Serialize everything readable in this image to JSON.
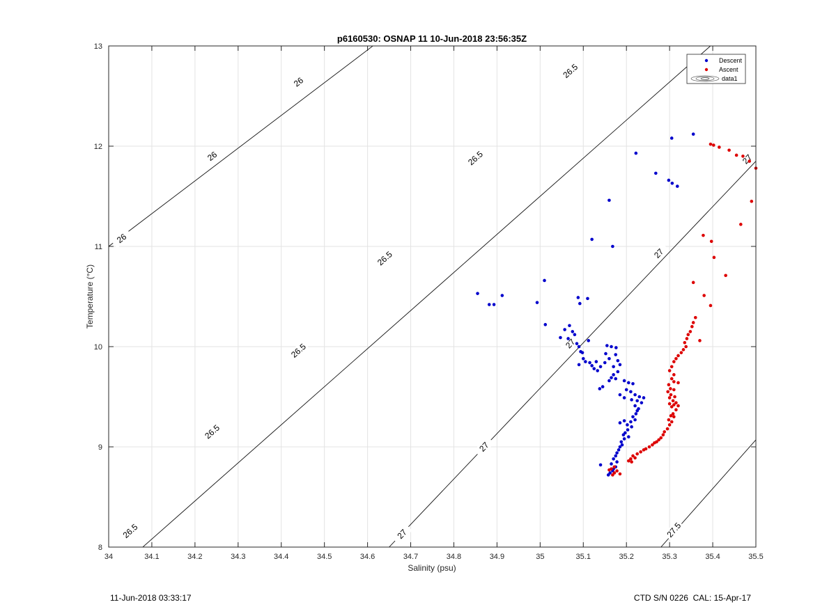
{
  "chart_data": {
    "type": "scatter",
    "title": "p6160530: OSNAP 11 10-Jun-2018 23:56:35Z",
    "xlabel": "Salinity (psu)",
    "ylabel": "Temperature (°C)",
    "xlim": [
      34,
      35.5
    ],
    "ylim": [
      8,
      13
    ],
    "xticks": [
      "34",
      "34.1",
      "34.2",
      "34.3",
      "34.4",
      "34.5",
      "34.6",
      "34.7",
      "34.8",
      "34.9",
      "35",
      "35.1",
      "35.2",
      "35.3",
      "35.4",
      "35.5"
    ],
    "yticks": [
      "8",
      "9",
      "10",
      "11",
      "12",
      "13"
    ],
    "grid": true,
    "legend_position": "top-right",
    "legend": [
      "Descent",
      "Ascent",
      "data1"
    ],
    "series": [
      {
        "name": "Descent",
        "color": "#0000cc",
        "points": [
          [
            35.355,
            12.12
          ],
          [
            35.305,
            12.08
          ],
          [
            35.222,
            11.93
          ],
          [
            35.268,
            11.73
          ],
          [
            35.298,
            11.66
          ],
          [
            35.306,
            11.63
          ],
          [
            35.318,
            11.6
          ],
          [
            35.16,
            11.46
          ],
          [
            35.12,
            11.07
          ],
          [
            35.168,
            11.0
          ],
          [
            35.01,
            10.66
          ],
          [
            34.855,
            10.53
          ],
          [
            34.912,
            10.51
          ],
          [
            34.882,
            10.42
          ],
          [
            34.893,
            10.42
          ],
          [
            34.993,
            10.44
          ],
          [
            35.088,
            10.49
          ],
          [
            35.11,
            10.48
          ],
          [
            35.092,
            10.43
          ],
          [
            35.012,
            10.22
          ],
          [
            35.068,
            10.21
          ],
          [
            35.057,
            10.17
          ],
          [
            35.075,
            10.15
          ],
          [
            35.08,
            10.12
          ],
          [
            35.047,
            10.09
          ],
          [
            35.065,
            10.08
          ],
          [
            35.112,
            10.06
          ],
          [
            35.085,
            10.03
          ],
          [
            35.09,
            10.0
          ],
          [
            35.094,
            9.95
          ],
          [
            35.155,
            10.01
          ],
          [
            35.165,
            10.0
          ],
          [
            35.176,
            9.99
          ],
          [
            35.098,
            9.94
          ],
          [
            35.152,
            9.93
          ],
          [
            35.175,
            9.92
          ],
          [
            35.1,
            9.88
          ],
          [
            35.16,
            9.88
          ],
          [
            35.18,
            9.86
          ],
          [
            35.105,
            9.85
          ],
          [
            35.115,
            9.84
          ],
          [
            35.13,
            9.85
          ],
          [
            35.15,
            9.84
          ],
          [
            35.09,
            9.82
          ],
          [
            35.12,
            9.81
          ],
          [
            35.14,
            9.8
          ],
          [
            35.17,
            9.8
          ],
          [
            35.185,
            9.82
          ],
          [
            35.125,
            9.78
          ],
          [
            35.133,
            9.76
          ],
          [
            35.18,
            9.75
          ],
          [
            35.17,
            9.72
          ],
          [
            35.165,
            9.69
          ],
          [
            35.16,
            9.66
          ],
          [
            35.175,
            9.68
          ],
          [
            35.195,
            9.66
          ],
          [
            35.205,
            9.64
          ],
          [
            35.215,
            9.63
          ],
          [
            35.145,
            9.6
          ],
          [
            35.138,
            9.58
          ],
          [
            35.2,
            9.57
          ],
          [
            35.21,
            9.55
          ],
          [
            35.185,
            9.52
          ],
          [
            35.22,
            9.52
          ],
          [
            35.23,
            9.5
          ],
          [
            35.24,
            9.49
          ],
          [
            35.195,
            9.49
          ],
          [
            35.212,
            9.47
          ],
          [
            35.225,
            9.46
          ],
          [
            35.235,
            9.44
          ],
          [
            35.22,
            9.41
          ],
          [
            35.228,
            9.38
          ],
          [
            35.225,
            9.36
          ],
          [
            35.222,
            9.33
          ],
          [
            35.215,
            9.3
          ],
          [
            35.22,
            9.27
          ],
          [
            35.21,
            9.25
          ],
          [
            35.195,
            9.26
          ],
          [
            35.185,
            9.24
          ],
          [
            35.202,
            9.22
          ],
          [
            35.212,
            9.2
          ],
          [
            35.203,
            9.17
          ],
          [
            35.197,
            9.14
          ],
          [
            35.193,
            9.12
          ],
          [
            35.205,
            9.1
          ],
          [
            35.195,
            9.08
          ],
          [
            35.188,
            9.05
          ],
          [
            35.19,
            9.02
          ],
          [
            35.185,
            9.0
          ],
          [
            35.182,
            8.97
          ],
          [
            35.178,
            8.94
          ],
          [
            35.175,
            8.91
          ],
          [
            35.17,
            8.88
          ],
          [
            35.178,
            8.85
          ],
          [
            35.165,
            8.83
          ],
          [
            35.14,
            8.82
          ],
          [
            35.175,
            8.8
          ],
          [
            35.17,
            8.78
          ],
          [
            35.168,
            8.76
          ],
          [
            35.162,
            8.74
          ],
          [
            35.158,
            8.72
          ]
        ]
      },
      {
        "name": "Ascent",
        "color": "#dd0000",
        "points": [
          [
            35.395,
            12.02
          ],
          [
            35.402,
            12.01
          ],
          [
            35.415,
            11.99
          ],
          [
            35.438,
            11.96
          ],
          [
            35.455,
            11.91
          ],
          [
            35.47,
            11.9
          ],
          [
            35.485,
            11.85
          ],
          [
            35.5,
            11.78
          ],
          [
            35.49,
            11.45
          ],
          [
            35.465,
            11.22
          ],
          [
            35.378,
            11.11
          ],
          [
            35.397,
            11.05
          ],
          [
            35.403,
            10.89
          ],
          [
            35.43,
            10.71
          ],
          [
            35.355,
            10.64
          ],
          [
            35.38,
            10.51
          ],
          [
            35.395,
            10.41
          ],
          [
            35.36,
            10.29
          ],
          [
            35.355,
            10.24
          ],
          [
            35.352,
            10.2
          ],
          [
            35.348,
            10.15
          ],
          [
            35.343,
            10.12
          ],
          [
            35.34,
            10.08
          ],
          [
            35.37,
            10.06
          ],
          [
            35.335,
            10.04
          ],
          [
            35.338,
            10.0
          ],
          [
            35.332,
            9.97
          ],
          [
            35.327,
            9.94
          ],
          [
            35.32,
            9.91
          ],
          [
            35.315,
            9.88
          ],
          [
            35.31,
            9.85
          ],
          [
            35.305,
            9.8
          ],
          [
            35.3,
            9.76
          ],
          [
            35.31,
            9.72
          ],
          [
            35.305,
            9.68
          ],
          [
            35.31,
            9.65
          ],
          [
            35.32,
            9.64
          ],
          [
            35.298,
            9.62
          ],
          [
            35.302,
            9.58
          ],
          [
            35.31,
            9.57
          ],
          [
            35.296,
            9.55
          ],
          [
            35.303,
            9.52
          ],
          [
            35.312,
            9.5
          ],
          [
            35.3,
            9.49
          ],
          [
            35.308,
            9.46
          ],
          [
            35.315,
            9.44
          ],
          [
            35.3,
            9.43
          ],
          [
            35.31,
            9.42
          ],
          [
            35.32,
            9.41
          ],
          [
            35.305,
            9.4
          ],
          [
            35.315,
            9.37
          ],
          [
            35.308,
            9.33
          ],
          [
            35.303,
            9.31
          ],
          [
            35.31,
            9.3
          ],
          [
            35.298,
            9.27
          ],
          [
            35.305,
            9.25
          ],
          [
            35.3,
            9.22
          ],
          [
            35.295,
            9.18
          ],
          [
            35.288,
            9.15
          ],
          [
            35.285,
            9.12
          ],
          [
            35.28,
            9.09
          ],
          [
            35.275,
            9.07
          ],
          [
            35.27,
            9.05
          ],
          [
            35.265,
            9.04
          ],
          [
            35.26,
            9.02
          ],
          [
            35.253,
            9.0
          ],
          [
            35.245,
            8.98
          ],
          [
            35.24,
            8.97
          ],
          [
            35.233,
            8.95
          ],
          [
            35.225,
            8.93
          ],
          [
            35.215,
            8.91
          ],
          [
            35.22,
            8.89
          ],
          [
            35.21,
            8.88
          ],
          [
            35.205,
            8.86
          ],
          [
            35.212,
            8.85
          ],
          [
            35.172,
            8.8
          ],
          [
            35.165,
            8.78
          ],
          [
            35.16,
            8.77
          ],
          [
            35.178,
            8.76
          ],
          [
            35.172,
            8.74
          ],
          [
            35.185,
            8.73
          ],
          [
            35.168,
            8.72
          ]
        ]
      }
    ],
    "contours": [
      {
        "label": "26",
        "line": [
          [
            34,
            11.0
          ],
          [
            35.5,
            15.9
          ]
        ],
        "label_positions": [
          [
            34.03,
            11.08
          ],
          [
            34.24,
            11.9
          ],
          [
            34.44,
            12.64
          ]
        ]
      },
      {
        "label": "26.5",
        "line": [
          [
            34,
            7.7
          ],
          [
            35.5,
            13.4
          ]
        ],
        "label_positions": [
          [
            34.05,
            8.16
          ],
          [
            34.24,
            9.15
          ],
          [
            34.44,
            9.96
          ],
          [
            34.64,
            10.88
          ],
          [
            34.85,
            11.88
          ],
          [
            35.07,
            12.75
          ]
        ]
      },
      {
        "label": "27",
        "line": [
          [
            34.65,
            8.0
          ],
          [
            35.5,
            11.85
          ]
        ],
        "label_positions": [
          [
            34.68,
            8.13
          ],
          [
            34.87,
            9.0
          ],
          [
            35.07,
            10.03
          ],
          [
            35.275,
            10.93
          ],
          [
            35.48,
            11.87
          ]
        ]
      },
      {
        "label": "27.5",
        "line": [
          [
            35.28,
            8.0
          ],
          [
            35.5,
            9.07
          ]
        ],
        "label_positions": [
          [
            35.31,
            8.17
          ]
        ]
      }
    ]
  },
  "footer": {
    "timestamp": "11-Jun-2018 03:33:17",
    "ctd_info": "CTD S/N 0226  CAL: 15-Apr-17"
  }
}
